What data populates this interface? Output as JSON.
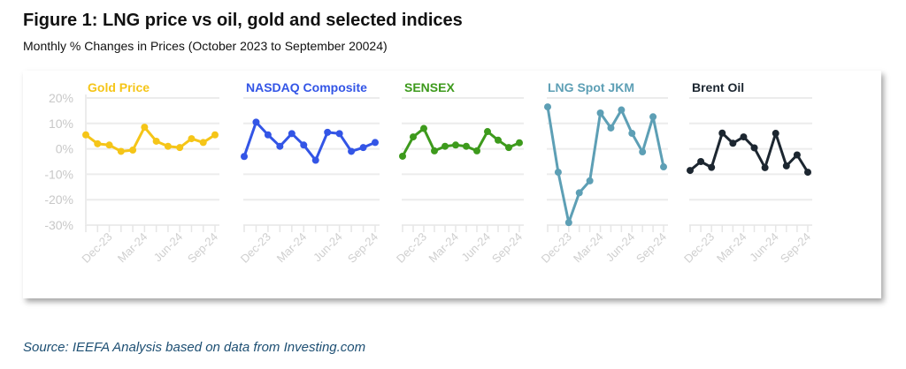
{
  "title": "Figure 1: LNG price vs oil, gold and selected indices",
  "subtitle": "Monthly % Changes in Prices (October 2023 to September 20024)",
  "source": "Source: IEEFA Analysis based on data from Investing.com",
  "chart_data": [
    {
      "type": "line",
      "title": "Gold Price",
      "color": "#f5c518",
      "ylim": [
        -30,
        20
      ],
      "x": [
        "Oct-23",
        "Nov-23",
        "Dec-23",
        "Jan-24",
        "Feb-24",
        "Mar-24",
        "Apr-24",
        "May-24",
        "Jun-24",
        "Jul-24",
        "Aug-24",
        "Sep-24"
      ],
      "values": [
        5.5,
        2,
        1.5,
        -1,
        -0.5,
        8.5,
        3,
        1,
        0.5,
        4,
        2.5,
        5.5
      ]
    },
    {
      "type": "line",
      "title": "NASDAQ Composite",
      "color": "#3355e6",
      "ylim": [
        -30,
        20
      ],
      "x": [
        "Oct-23",
        "Nov-23",
        "Dec-23",
        "Jan-24",
        "Feb-24",
        "Mar-24",
        "Apr-24",
        "May-24",
        "Jun-24",
        "Jul-24",
        "Aug-24",
        "Sep-24"
      ],
      "values": [
        -3,
        10.5,
        5.5,
        1,
        6,
        1.5,
        -4.5,
        6.5,
        6,
        -1,
        0.5,
        2.5
      ]
    },
    {
      "type": "line",
      "title": "SENSEX",
      "color": "#3d9a1c",
      "ylim": [
        -30,
        20
      ],
      "x": [
        "Oct-23",
        "Nov-23",
        "Dec-23",
        "Jan-24",
        "Feb-24",
        "Mar-24",
        "Apr-24",
        "May-24",
        "Jun-24",
        "Jul-24",
        "Aug-24",
        "Sep-24"
      ],
      "values": [
        -2.9,
        4.7,
        8,
        -0.8,
        1,
        1.5,
        1,
        -0.8,
        6.8,
        3.4,
        0.5,
        2.4
      ]
    },
    {
      "type": "line",
      "title": "LNG Spot JKM",
      "color": "#5d9fb5",
      "ylim": [
        -30,
        20
      ],
      "x": [
        "Oct-23",
        "Nov-23",
        "Dec-23",
        "Jan-24",
        "Feb-24",
        "Mar-24",
        "Apr-24",
        "May-24",
        "Jun-24",
        "Jul-24",
        "Aug-24",
        "Sep-24"
      ],
      "values": [
        16.5,
        -9.2,
        -29,
        -17.3,
        -12.6,
        14.1,
        8.2,
        15.3,
        6.1,
        -1.2,
        12.6,
        -7.1
      ]
    },
    {
      "type": "line",
      "title": "Brent Oil",
      "color": "#1c2630",
      "ylim": [
        -30,
        20
      ],
      "x": [
        "Oct-23",
        "Nov-23",
        "Dec-23",
        "Jan-24",
        "Feb-24",
        "Mar-24",
        "Apr-24",
        "May-24",
        "Jun-24",
        "Jul-24",
        "Aug-24",
        "Sep-24"
      ],
      "values": [
        -8.5,
        -5,
        -7.3,
        6.2,
        2.2,
        4.7,
        0.4,
        -7.4,
        6.1,
        -6.7,
        -2.4,
        -9.2
      ]
    }
  ],
  "y_ticks": [
    "20%",
    "10%",
    "0%",
    "-10%",
    "-20%",
    "-30%"
  ],
  "y_tick_values": [
    20,
    10,
    0,
    -10,
    -20,
    -30
  ],
  "x_tick_labels": [
    "Dec-23",
    "Mar-24",
    "Jun-24",
    "Sep-24"
  ]
}
